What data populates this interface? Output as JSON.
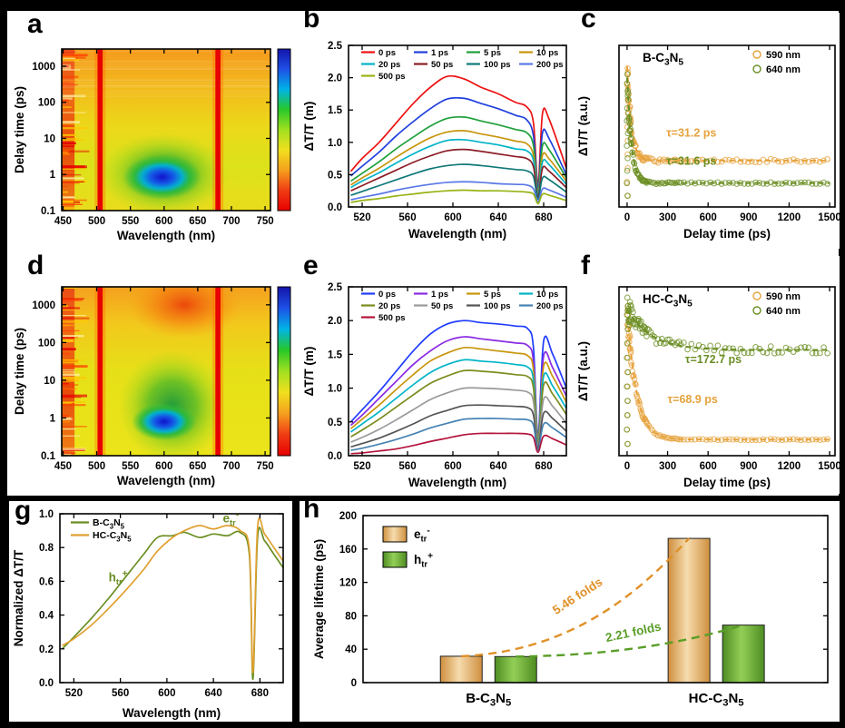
{
  "figure": {
    "labels": {
      "a": "a",
      "b": "b",
      "c": "c",
      "d": "d",
      "e": "e",
      "f": "f",
      "g": "g",
      "h": "h"
    }
  },
  "chart_data": [
    {
      "panel": "a",
      "type": "heatmap",
      "xlabel": "Wavelength (nm)",
      "ylabel": "Delay time (ps)",
      "xlim": [
        448,
        758
      ],
      "xticks": [
        450,
        500,
        550,
        600,
        650,
        700,
        750
      ],
      "ylim_log": [
        0.1,
        3000
      ],
      "yticks": [
        "0.1",
        "1",
        "10",
        "100",
        "1000"
      ],
      "pump_lines_nm": [
        505,
        680
      ],
      "noise_band_nm": [
        449,
        467
      ],
      "top_streaks": true,
      "base_stops": [
        [
          "0%",
          "#f59a1e"
        ],
        [
          "25%",
          "#f2bc1c"
        ],
        [
          "48%",
          "#ecd81a"
        ],
        [
          "72%",
          "#dce21a"
        ],
        [
          "100%",
          "#eadc1c"
        ]
      ],
      "green_blob": {
        "nm": 600,
        "ps": 1.0,
        "rx_nm": 95,
        "ry_dec": 1.15,
        "stops": [
          [
            "0%",
            "rgba(20,150,60,0.95)"
          ],
          [
            "45%",
            "rgba(80,185,40,0.8)"
          ],
          [
            "75%",
            "rgba(150,210,30,0.45)"
          ],
          [
            "100%",
            "rgba(180,215,30,0)"
          ]
        ]
      },
      "blue_blob": {
        "nm": 597,
        "ps": 0.85,
        "rx_nm": 58,
        "ry_dec": 0.62,
        "stops": [
          [
            "0%",
            "rgba(18,18,205,1)"
          ],
          [
            "30%",
            "rgba(20,90,230,1)"
          ],
          [
            "52%",
            "rgba(0,175,215,0.95)"
          ],
          [
            "72%",
            "rgba(40,185,60,0.85)"
          ],
          [
            "100%",
            "rgba(60,190,60,0)"
          ]
        ]
      },
      "colorbar_top_to_bottom": [
        "#1414aa",
        "#1e50e6",
        "#00b4e6",
        "#28c828",
        "#a0e020",
        "#f0e01e",
        "#f5a01e",
        "#f03c14",
        "#e80000"
      ]
    },
    {
      "panel": "b",
      "type": "line",
      "legend": "grid",
      "xlabel": "Wavelength (nm)",
      "ylabel": "ΔT/T (m)",
      "xlim": [
        508,
        700
      ],
      "xticks": [
        520,
        560,
        600,
        640,
        680
      ],
      "ylim": [
        0,
        2.5
      ],
      "yticks": [
        "0.0",
        "0.5",
        "1.0",
        "1.5",
        "2.0",
        "2.5"
      ],
      "x": [
        510,
        520,
        535,
        550,
        565,
        580,
        595,
        610,
        625,
        640,
        655,
        665,
        671,
        675,
        679,
        685,
        700
      ],
      "series": [
        {
          "name": "0 ps",
          "color": "#ee1111",
          "values": [
            0.55,
            0.75,
            1.0,
            1.3,
            1.6,
            1.85,
            2.02,
            1.98,
            1.85,
            1.75,
            1.62,
            1.55,
            1.3,
            0.35,
            1.45,
            1.35,
            0.6
          ]
        },
        {
          "name": "1 ps",
          "color": "#2040dd",
          "values": [
            0.48,
            0.63,
            0.85,
            1.1,
            1.32,
            1.52,
            1.67,
            1.68,
            1.6,
            1.52,
            1.42,
            1.35,
            1.1,
            0.3,
            1.15,
            1.05,
            0.5
          ]
        },
        {
          "name": "5 ps",
          "color": "#1fa03c",
          "values": [
            0.4,
            0.52,
            0.7,
            0.9,
            1.08,
            1.25,
            1.37,
            1.39,
            1.33,
            1.27,
            1.2,
            1.15,
            0.95,
            0.25,
            0.95,
            0.88,
            0.45
          ]
        },
        {
          "name": "10 ps",
          "color": "#c8960c",
          "values": [
            0.34,
            0.45,
            0.6,
            0.77,
            0.93,
            1.07,
            1.16,
            1.18,
            1.13,
            1.08,
            1.02,
            0.98,
            0.8,
            0.2,
            0.8,
            0.74,
            0.4
          ]
        },
        {
          "name": "20 ps",
          "color": "#00b4c8",
          "values": [
            0.3,
            0.4,
            0.53,
            0.68,
            0.82,
            0.94,
            1.03,
            1.04,
            1.0,
            0.96,
            0.9,
            0.87,
            0.72,
            0.18,
            0.7,
            0.65,
            0.35
          ]
        },
        {
          "name": "50 ps",
          "color": "#8c1e28",
          "values": [
            0.25,
            0.33,
            0.45,
            0.57,
            0.69,
            0.79,
            0.87,
            0.89,
            0.86,
            0.82,
            0.78,
            0.75,
            0.62,
            0.15,
            0.6,
            0.55,
            0.3
          ]
        },
        {
          "name": "100 ps",
          "color": "#0f7878",
          "values": [
            0.18,
            0.24,
            0.33,
            0.42,
            0.51,
            0.59,
            0.64,
            0.66,
            0.64,
            0.61,
            0.58,
            0.56,
            0.47,
            0.12,
            0.45,
            0.42,
            0.23
          ]
        },
        {
          "name": "200 ps",
          "color": "#5a78e6",
          "values": [
            0.11,
            0.15,
            0.2,
            0.26,
            0.31,
            0.35,
            0.38,
            0.39,
            0.38,
            0.36,
            0.35,
            0.34,
            0.28,
            0.08,
            0.28,
            0.26,
            0.15
          ]
        },
        {
          "name": "500 ps",
          "color": "#96b414",
          "values": [
            0.07,
            0.1,
            0.13,
            0.17,
            0.2,
            0.23,
            0.25,
            0.26,
            0.25,
            0.25,
            0.24,
            0.23,
            0.2,
            0.05,
            0.2,
            0.18,
            0.1
          ]
        }
      ]
    },
    {
      "panel": "c",
      "type": "decay",
      "title": {
        "formula": "B-C3N5"
      },
      "xlabel": "Delay time (ps)",
      "ylabel": "ΔT/T (a.u.)",
      "xlim": [
        -60,
        1540
      ],
      "xticks": [
        0,
        300,
        600,
        900,
        1200,
        1500
      ],
      "ylim": [
        0,
        1.15
      ],
      "series": [
        {
          "name": "590 nm",
          "color": "#e6a23c",
          "A": 0.67,
          "tau_ps": 31.2,
          "C": 0.33,
          "tau_label": "τ=31.2 ps",
          "label_x": 290,
          "label_y": 0.5
        },
        {
          "name": "640 nm",
          "color": "#6b8e23",
          "A": 0.75,
          "tau_ps": 31.6,
          "C": 0.17,
          "tau_label": "τ=31.6 ps",
          "label_x": 290,
          "label_y": 0.3
        }
      ]
    },
    {
      "panel": "d",
      "type": "heatmap",
      "xlabel": "Wavelength (nm)",
      "ylabel": "Delay time (ps)",
      "xlim": [
        448,
        758
      ],
      "xticks": [
        450,
        500,
        550,
        600,
        650,
        700,
        750
      ],
      "ylim_log": [
        0.1,
        3000
      ],
      "yticks": [
        "0.1",
        "1",
        "10",
        "100",
        "1000"
      ],
      "pump_lines_nm": [
        505,
        680
      ],
      "noise_band_nm": [
        449,
        467
      ],
      "top_streaks": false,
      "base_stops": [
        [
          "0%",
          "#f5a01e"
        ],
        [
          "22%",
          "#f2c81c"
        ],
        [
          "50%",
          "#e6e018"
        ],
        [
          "100%",
          "#ece41a"
        ]
      ],
      "red_top": {
        "nm": 630,
        "ps": 1000,
        "rx_nm": 85,
        "ry_dec": 0.9,
        "stops": [
          [
            "0%",
            "rgba(235,60,10,0.9)"
          ],
          [
            "55%",
            "rgba(245,125,15,0.6)"
          ],
          [
            "100%",
            "rgba(245,160,20,0)"
          ]
        ]
      },
      "green_blob": {
        "nm": 612,
        "ps": 2.0,
        "rx_nm": 80,
        "ry_dec": 1.5,
        "stops": [
          [
            "0%",
            "rgba(20,150,60,0.95)"
          ],
          [
            "45%",
            "rgba(80,185,40,0.8)"
          ],
          [
            "75%",
            "rgba(150,210,30,0.45)"
          ],
          [
            "100%",
            "rgba(180,215,30,0)"
          ]
        ]
      },
      "blue_blob": {
        "nm": 600,
        "ps": 0.8,
        "rx_nm": 48,
        "ry_dec": 0.5,
        "stops": [
          [
            "0%",
            "rgba(18,18,205,1)"
          ],
          [
            "30%",
            "rgba(20,90,230,1)"
          ],
          [
            "52%",
            "rgba(0,175,215,0.95)"
          ],
          [
            "72%",
            "rgba(40,185,60,0.85)"
          ],
          [
            "100%",
            "rgba(60,190,60,0)"
          ]
        ]
      },
      "colorbar_top_to_bottom": [
        "#1414aa",
        "#1e50e6",
        "#00b4e6",
        "#28c828",
        "#a0e020",
        "#f0e01e",
        "#f5a01e",
        "#f03c14",
        "#e80000"
      ]
    },
    {
      "panel": "e",
      "type": "line",
      "legend": "grid",
      "xlabel": "Wavelength (nm)",
      "ylabel": "ΔT/T (m)",
      "xlim": [
        508,
        700
      ],
      "xticks": [
        520,
        560,
        600,
        640,
        680
      ],
      "ylim": [
        0,
        2.5
      ],
      "yticks": [
        "0.0",
        "0.5",
        "1.0",
        "1.5",
        "2.0",
        "2.5"
      ],
      "x": [
        510,
        520,
        535,
        550,
        565,
        580,
        595,
        610,
        625,
        640,
        655,
        666,
        671,
        675,
        680,
        688,
        700
      ],
      "series": [
        {
          "name": "0 ps",
          "color": "#1f3cff",
          "values": [
            0.5,
            0.68,
            0.95,
            1.25,
            1.55,
            1.8,
            1.95,
            2.0,
            1.97,
            1.95,
            1.92,
            1.88,
            1.6,
            0.3,
            1.7,
            1.5,
            1.0
          ]
        },
        {
          "name": "1 ps",
          "color": "#8a2be2",
          "values": [
            0.45,
            0.6,
            0.85,
            1.1,
            1.35,
            1.55,
            1.7,
            1.76,
            1.73,
            1.7,
            1.67,
            1.63,
            1.4,
            0.27,
            1.48,
            1.3,
            0.88
          ]
        },
        {
          "name": "5 ps",
          "color": "#c8960c",
          "values": [
            0.4,
            0.54,
            0.75,
            0.98,
            1.2,
            1.4,
            1.52,
            1.6,
            1.58,
            1.55,
            1.52,
            1.48,
            1.27,
            0.24,
            1.33,
            1.17,
            0.79
          ]
        },
        {
          "name": "10 ps",
          "color": "#00b4c8",
          "values": [
            0.35,
            0.47,
            0.65,
            0.85,
            1.05,
            1.23,
            1.35,
            1.42,
            1.4,
            1.38,
            1.35,
            1.31,
            1.12,
            0.21,
            1.18,
            1.03,
            0.7
          ]
        },
        {
          "name": "20 ps",
          "color": "#7b8c1e",
          "values": [
            0.28,
            0.38,
            0.54,
            0.72,
            0.9,
            1.07,
            1.18,
            1.26,
            1.25,
            1.23,
            1.2,
            1.17,
            1.0,
            0.18,
            1.05,
            0.91,
            0.61
          ]
        },
        {
          "name": "50 ps",
          "color": "#9a9a9a",
          "values": [
            0.2,
            0.27,
            0.39,
            0.53,
            0.68,
            0.83,
            0.93,
            1.0,
            1.0,
            0.99,
            0.97,
            0.94,
            0.8,
            0.14,
            0.84,
            0.73,
            0.48
          ]
        },
        {
          "name": "100 ps",
          "color": "#555555",
          "values": [
            0.13,
            0.18,
            0.26,
            0.36,
            0.47,
            0.59,
            0.67,
            0.74,
            0.75,
            0.74,
            0.73,
            0.71,
            0.6,
            0.11,
            0.63,
            0.55,
            0.36
          ]
        },
        {
          "name": "200 ps",
          "color": "#4682b4",
          "values": [
            0.08,
            0.11,
            0.17,
            0.24,
            0.32,
            0.41,
            0.48,
            0.54,
            0.55,
            0.55,
            0.54,
            0.53,
            0.45,
            0.08,
            0.47,
            0.41,
            0.27
          ]
        },
        {
          "name": "500 ps",
          "color": "#b4143c",
          "values": [
            0.03,
            0.04,
            0.07,
            0.1,
            0.15,
            0.21,
            0.26,
            0.31,
            0.33,
            0.33,
            0.33,
            0.32,
            0.27,
            0.05,
            0.29,
            0.25,
            0.16
          ]
        }
      ]
    },
    {
      "panel": "f",
      "type": "decay",
      "title": {
        "formula": "HC-C3N5"
      },
      "xlabel": "Delay time (ps)",
      "ylabel": "ΔT/T (a.u.)",
      "xlim": [
        -60,
        1540
      ],
      "xticks": [
        0,
        300,
        600,
        900,
        1200,
        1500
      ],
      "ylim": [
        0,
        1.15
      ],
      "series": [
        {
          "name": "590 nm",
          "color": "#e6a23c",
          "A": 0.89,
          "tau_ps": 68.9,
          "C": 0.11,
          "tau_label": "τ=68.9 ps",
          "label_x": 300,
          "label_y": 0.36
        },
        {
          "name": "640 nm",
          "color": "#6b8e23",
          "A": 0.28,
          "tau_ps": 172.7,
          "C": 0.72,
          "tau_label": "τ=172.7 ps",
          "label_x": 430,
          "label_y": 0.63
        }
      ]
    },
    {
      "panel": "g",
      "type": "line",
      "legend": "left",
      "xlabel": "Wavelength (nm)",
      "ylabel": "Normalized ΔT/T",
      "xlim": [
        508,
        700
      ],
      "xticks": [
        520,
        560,
        600,
        640,
        680
      ],
      "ylim": [
        0,
        1.0
      ],
      "yticks": [
        "0.0",
        "0.2",
        "0.4",
        "0.6",
        "0.8",
        "1.0"
      ],
      "x": [
        510,
        520,
        535,
        550,
        565,
        580,
        592,
        605,
        615,
        628,
        640,
        652,
        663,
        671,
        674,
        678,
        684,
        692,
        700
      ],
      "series": [
        {
          "name": {
            "formula": "B-C3N5"
          },
          "color": "#6b8e23",
          "values": [
            0.2,
            0.27,
            0.38,
            0.5,
            0.63,
            0.76,
            0.86,
            0.87,
            0.89,
            0.86,
            0.88,
            0.87,
            0.89,
            0.75,
            0.02,
            0.86,
            0.84,
            0.76,
            0.68
          ]
        },
        {
          "name": {
            "formula": "HC-C3N5"
          },
          "color": "#e0a030",
          "values": [
            0.22,
            0.26,
            0.34,
            0.44,
            0.55,
            0.67,
            0.78,
            0.86,
            0.9,
            0.93,
            0.91,
            0.93,
            0.9,
            0.78,
            0.06,
            0.92,
            0.88,
            0.8,
            0.72
          ]
        }
      ],
      "annotations": [
        {
          "text": {
            "base": "h",
            "sub": "tr",
            "sup": "+"
          },
          "color": "#6b8e23",
          "x": 558,
          "y": 0.6
        },
        {
          "text": {
            "base": "e",
            "sub": "tr",
            "sup": "-"
          },
          "color": "#6b8e23",
          "x": 655,
          "y": 0.95
        }
      ]
    },
    {
      "panel": "h",
      "type": "bar",
      "ylabel": "Average lifetime (ps)",
      "ylim": [
        0,
        200
      ],
      "yticks": [
        "0",
        "40",
        "80",
        "120",
        "160",
        "200"
      ],
      "groups": [
        {
          "formula": "B-C3N5"
        },
        {
          "formula": "HC-C3N5"
        }
      ],
      "series": [
        {
          "name": {
            "base": "e",
            "sub": "tr",
            "sup": "-"
          },
          "color_edge": "#cf8f3e",
          "color_mid": "#f6dcae",
          "values": [
            31.6,
            172.7
          ]
        },
        {
          "name": {
            "base": "h",
            "sub": "tr",
            "sup": "+"
          },
          "color_edge": "#4e8c22",
          "color_mid": "#93cf57",
          "values": [
            31.2,
            68.9
          ]
        }
      ],
      "folds": [
        {
          "text": "5.46 folds",
          "color": "#e09028",
          "series": 0,
          "rotation": -33
        },
        {
          "text": "2.21 folds",
          "color": "#5a9e28",
          "series": 1,
          "rotation": -12
        }
      ]
    }
  ]
}
